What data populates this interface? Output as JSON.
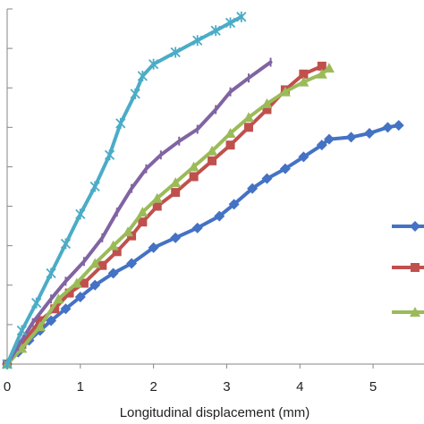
{
  "chart_data": {
    "type": "line",
    "title": "",
    "xlabel": "Longitudinal displacement (mm)",
    "ylabel": "",
    "xlim": [
      0,
      5.5
    ],
    "ylim": [
      0,
      9
    ],
    "x_ticks": [
      "0",
      "1",
      "2",
      "3",
      "4",
      "5"
    ],
    "grid": false,
    "legend": "right",
    "series": [
      {
        "color": "#4472c4",
        "marker": "diamond",
        "points": [
          [
            0,
            0
          ],
          [
            0.15,
            0.3
          ],
          [
            0.3,
            0.6
          ],
          [
            0.45,
            0.85
          ],
          [
            0.6,
            1.1
          ],
          [
            0.8,
            1.4
          ],
          [
            1.0,
            1.7
          ],
          [
            1.2,
            2.0
          ],
          [
            1.45,
            2.3
          ],
          [
            1.7,
            2.55
          ],
          [
            2.0,
            2.95
          ],
          [
            2.3,
            3.2
          ],
          [
            2.6,
            3.45
          ],
          [
            2.9,
            3.75
          ],
          [
            3.1,
            4.05
          ],
          [
            3.35,
            4.45
          ],
          [
            3.55,
            4.7
          ],
          [
            3.8,
            4.95
          ],
          [
            4.05,
            5.25
          ],
          [
            4.3,
            5.55
          ],
          [
            4.4,
            5.7
          ],
          [
            4.7,
            5.75
          ],
          [
            4.95,
            5.85
          ],
          [
            5.2,
            6.0
          ],
          [
            5.35,
            6.05
          ]
        ]
      },
      {
        "color": "#c0504d",
        "marker": "square",
        "points": [
          [
            0,
            0
          ],
          [
            0.2,
            0.5
          ],
          [
            0.45,
            1.1
          ],
          [
            0.65,
            1.4
          ],
          [
            0.85,
            1.8
          ],
          [
            1.05,
            2.05
          ],
          [
            1.3,
            2.5
          ],
          [
            1.5,
            2.85
          ],
          [
            1.7,
            3.25
          ],
          [
            1.85,
            3.6
          ],
          [
            2.05,
            4.0
          ],
          [
            2.3,
            4.35
          ],
          [
            2.55,
            4.75
          ],
          [
            2.8,
            5.15
          ],
          [
            3.05,
            5.55
          ],
          [
            3.3,
            6.0
          ],
          [
            3.55,
            6.45
          ],
          [
            3.8,
            6.95
          ],
          [
            4.05,
            7.35
          ],
          [
            4.3,
            7.55
          ]
        ]
      },
      {
        "color": "#9bbb59",
        "marker": "triangle",
        "points": [
          [
            0,
            0
          ],
          [
            0.2,
            0.4
          ],
          [
            0.45,
            0.95
          ],
          [
            0.7,
            1.65
          ],
          [
            0.95,
            2.05
          ],
          [
            1.2,
            2.55
          ],
          [
            1.45,
            3.0
          ],
          [
            1.65,
            3.35
          ],
          [
            1.85,
            3.85
          ],
          [
            2.05,
            4.2
          ],
          [
            2.3,
            4.6
          ],
          [
            2.55,
            5.0
          ],
          [
            2.8,
            5.4
          ],
          [
            3.05,
            5.85
          ],
          [
            3.3,
            6.25
          ],
          [
            3.55,
            6.6
          ],
          [
            3.8,
            6.9
          ],
          [
            4.05,
            7.15
          ],
          [
            4.3,
            7.35
          ],
          [
            4.4,
            7.5
          ]
        ]
      },
      {
        "color": "#8064a2",
        "marker": "plus",
        "points": [
          [
            0,
            0
          ],
          [
            0.15,
            0.45
          ],
          [
            0.35,
            1.05
          ],
          [
            0.6,
            1.65
          ],
          [
            0.8,
            2.1
          ],
          [
            1.05,
            2.6
          ],
          [
            1.3,
            3.2
          ],
          [
            1.5,
            3.85
          ],
          [
            1.7,
            4.45
          ],
          [
            1.9,
            4.95
          ],
          [
            2.1,
            5.3
          ],
          [
            2.35,
            5.65
          ],
          [
            2.6,
            5.95
          ],
          [
            2.85,
            6.45
          ],
          [
            3.05,
            6.9
          ],
          [
            3.3,
            7.25
          ],
          [
            3.6,
            7.65
          ]
        ]
      },
      {
        "color": "#4bacc6",
        "marker": "star",
        "points": [
          [
            0,
            0
          ],
          [
            0.2,
            0.85
          ],
          [
            0.4,
            1.55
          ],
          [
            0.6,
            2.3
          ],
          [
            0.8,
            3.05
          ],
          [
            1.0,
            3.8
          ],
          [
            1.2,
            4.5
          ],
          [
            1.4,
            5.3
          ],
          [
            1.55,
            6.1
          ],
          [
            1.75,
            6.85
          ],
          [
            1.85,
            7.3
          ],
          [
            2.0,
            7.6
          ],
          [
            2.3,
            7.9
          ],
          [
            2.6,
            8.2
          ],
          [
            2.85,
            8.45
          ],
          [
            3.05,
            8.65
          ],
          [
            3.2,
            8.8
          ]
        ]
      }
    ]
  }
}
